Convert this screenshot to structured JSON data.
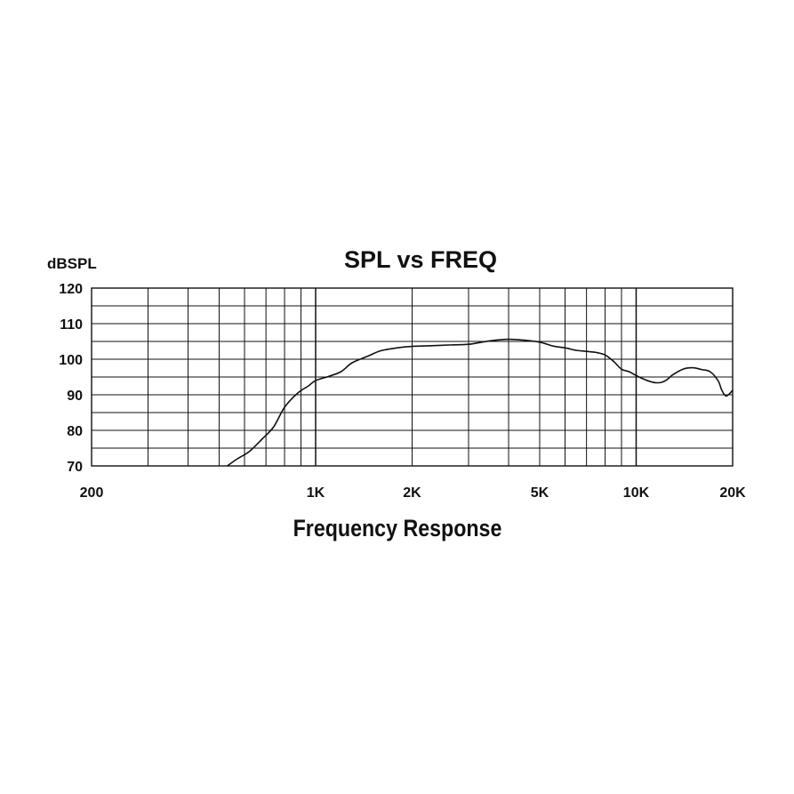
{
  "chart_data": {
    "type": "line",
    "title": "SPL vs FREQ",
    "xlabel": "Frequency Response",
    "ylabel": "dBSPL",
    "x_scale": "log",
    "xlim": [
      200,
      20000
    ],
    "ylim": [
      70,
      120
    ],
    "x_ticks": [
      {
        "value": 200,
        "label": "200"
      },
      {
        "value": 1000,
        "label": "1K"
      },
      {
        "value": 2000,
        "label": "2K"
      },
      {
        "value": 5000,
        "label": "5K"
      },
      {
        "value": 10000,
        "label": "10K"
      },
      {
        "value": 20000,
        "label": "20K"
      }
    ],
    "y_ticks": [
      {
        "value": 70,
        "label": "70"
      },
      {
        "value": 80,
        "label": "80"
      },
      {
        "value": 90,
        "label": "90"
      },
      {
        "value": 100,
        "label": "100"
      },
      {
        "value": 110,
        "label": "110"
      },
      {
        "value": 120,
        "label": "120"
      }
    ],
    "grid": true,
    "series": [
      {
        "color": "#111111",
        "x": [
          530,
          570,
          620,
          680,
          740,
          800,
          880,
          950,
          1000,
          1100,
          1200,
          1300,
          1450,
          1600,
          1800,
          2000,
          2300,
          2600,
          3000,
          3300,
          3600,
          4000,
          4400,
          5000,
          5500,
          6000,
          6500,
          7000,
          7500,
          8000,
          8500,
          9000,
          9500,
          10000,
          10500,
          11000,
          11500,
          12000,
          12500,
          13000,
          14000,
          15000,
          16000,
          17000,
          18000,
          18500,
          19000,
          19500,
          20000
        ],
        "y": [
          70,
          72,
          74,
          77.5,
          81,
          86.5,
          90.5,
          92.5,
          94,
          95.2,
          96.5,
          99,
          100.8,
          102.4,
          103.2,
          103.6,
          103.8,
          104,
          104.2,
          104.8,
          105.3,
          105.6,
          105.4,
          104.8,
          103.7,
          103.2,
          102.5,
          102.2,
          101.9,
          101.2,
          99.4,
          97.2,
          96.5,
          95.4,
          94.5,
          93.8,
          93.4,
          93.5,
          94.3,
          95.6,
          97.2,
          97.6,
          97.1,
          96.5,
          94,
          91.3,
          89.7,
          90.2,
          91.3
        ]
      }
    ]
  }
}
